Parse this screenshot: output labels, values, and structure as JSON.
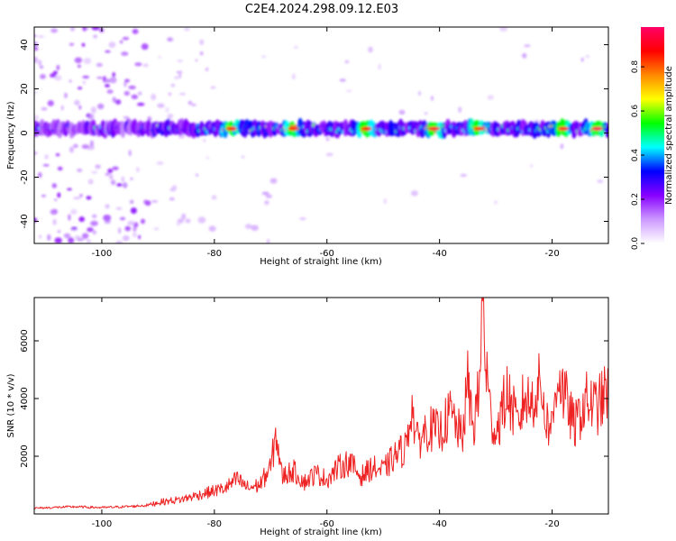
{
  "title": "C2E4.2024.298.09.12.E03",
  "chart_data": [
    {
      "type": "heatmap",
      "xlabel": "Height of straight line (km)",
      "ylabel": "Frequency (Hz)",
      "xlim": [
        -112,
        -10
      ],
      "ylim": [
        -50,
        48
      ],
      "xticks": [
        -100,
        -80,
        -60,
        -40,
        -20
      ],
      "yticks": [
        -40,
        -20,
        0,
        20,
        40
      ],
      "colorbar": {
        "label": "Normalized spectral amplitude",
        "range": [
          0,
          0.98
        ],
        "ticks": [
          "0.0",
          "0.2",
          "0.4",
          "0.6",
          "0.8"
        ],
        "colors": [
          "#ffffff",
          "#cc99ff",
          "#8800ff",
          "#0000ff",
          "#00ffff",
          "#00ff00",
          "#ffff00",
          "#ff8800",
          "#ff0000",
          "#ff0066"
        ]
      },
      "band": {
        "center_hz": 2,
        "halfwidth_hz": 3,
        "highlights": [
          {
            "x": -77,
            "level": 0.9
          },
          {
            "x": -66,
            "level": 0.85
          },
          {
            "x": -53,
            "level": 0.9
          },
          {
            "x": -41,
            "level": 0.95
          },
          {
            "x": -33,
            "level": 0.85
          },
          {
            "x": -18,
            "level": 0.95
          },
          {
            "x": -12,
            "level": 1.0
          }
        ]
      },
      "grid": false
    },
    {
      "type": "line",
      "xlabel": "Height of straight line (km)",
      "ylabel": "SNR (10 * v/v)",
      "xlim": [
        -112,
        -10
      ],
      "ylim": [
        0,
        7500
      ],
      "xticks": [
        -100,
        -80,
        -60,
        -40,
        -20
      ],
      "yticks": [
        2000,
        4000,
        6000
      ],
      "color": "#ee2222",
      "series": [
        {
          "x": [
            -112,
            -105,
            -100,
            -95,
            -92,
            -90,
            -86,
            -82,
            -78,
            -76,
            -74,
            -72,
            -70,
            -69,
            -68,
            -66,
            -64,
            -62,
            -60,
            -58,
            -56,
            -54,
            -52,
            -50,
            -48,
            -46,
            -45,
            -44,
            -42,
            -40,
            -38,
            -36,
            -35,
            -34,
            -33,
            -32.3,
            -31.8,
            -31,
            -30,
            -28,
            -26,
            -25,
            -24,
            -22,
            -21,
            -20,
            -19,
            -18,
            -17,
            -16,
            -15,
            -14,
            -12,
            -10
          ],
          "values": [
            200,
            250,
            220,
            260,
            300,
            400,
            500,
            700,
            900,
            1200,
            900,
            1000,
            1600,
            2800,
            1300,
            1500,
            1100,
            1400,
            1200,
            1600,
            1800,
            1300,
            1600,
            1500,
            2000,
            2300,
            3800,
            2500,
            3000,
            2800,
            3500,
            2600,
            4500,
            3000,
            4200,
            7400,
            5300,
            3500,
            2800,
            4200,
            3000,
            4100,
            3800,
            4500,
            3200,
            3000,
            5000,
            4200,
            3600,
            3000,
            3500,
            3900,
            3700,
            4300
          ]
        }
      ],
      "grid": false
    }
  ]
}
